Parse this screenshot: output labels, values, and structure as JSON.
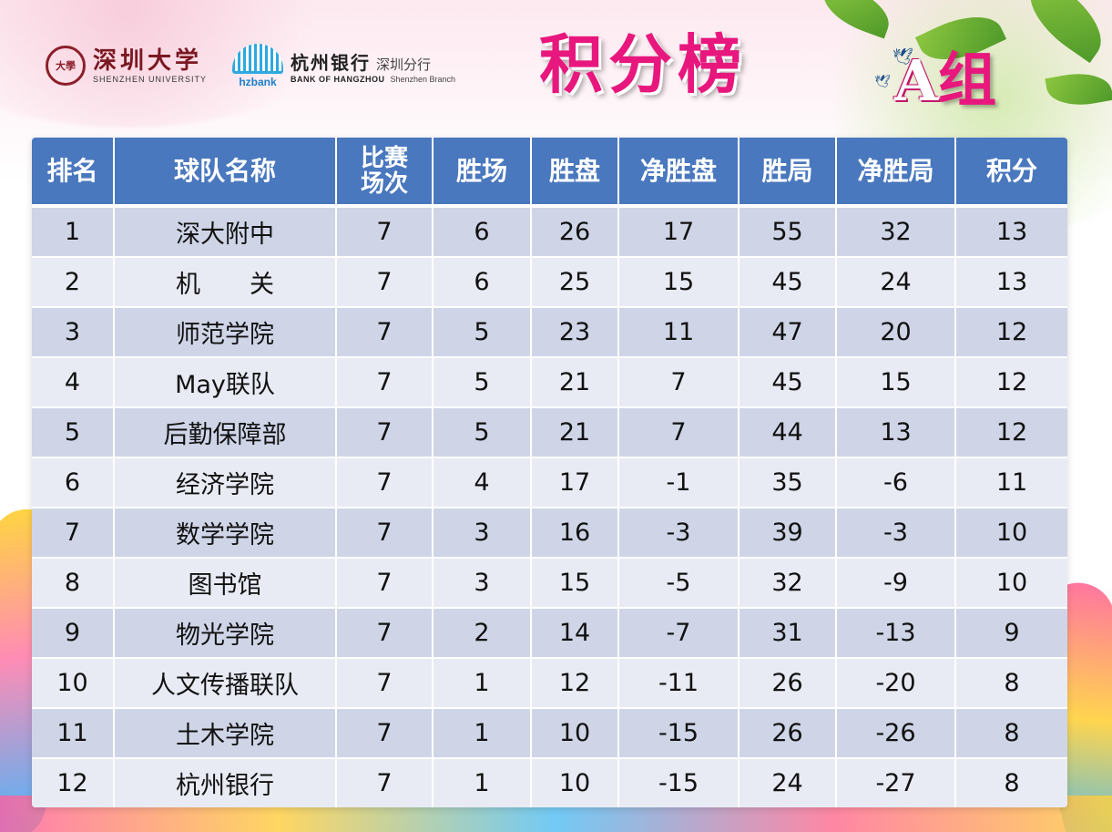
{
  "header": {
    "szu_seal": "大學",
    "szu_name_cn": "深圳大学",
    "szu_name_en": "SHENZHEN UNIVERSITY",
    "bank_short": "hzbank",
    "bank_name_cn": "杭州银行",
    "bank_branch_cn": "深圳分行",
    "bank_name_en": "BANK OF HANGZHOU",
    "bank_branch_en": "Shenzhen Branch",
    "title": "积分榜",
    "group_letter": "A",
    "group_suffix": "组"
  },
  "table": {
    "columns": [
      "排名",
      "球队名称",
      "比赛场次",
      "胜场",
      "胜盘",
      "净胜盘",
      "胜局",
      "净胜局",
      "积分"
    ],
    "rows": [
      [
        "1",
        "深大附中",
        "7",
        "6",
        "26",
        "17",
        "55",
        "32",
        "13"
      ],
      [
        "2",
        "机　　关",
        "7",
        "6",
        "25",
        "15",
        "45",
        "24",
        "13"
      ],
      [
        "3",
        "师范学院",
        "7",
        "5",
        "23",
        "11",
        "47",
        "20",
        "12"
      ],
      [
        "4",
        "May联队",
        "7",
        "5",
        "21",
        "7",
        "45",
        "15",
        "12"
      ],
      [
        "5",
        "后勤保障部",
        "7",
        "5",
        "21",
        "7",
        "44",
        "13",
        "12"
      ],
      [
        "6",
        "经济学院",
        "7",
        "4",
        "17",
        "-1",
        "35",
        "-6",
        "11"
      ],
      [
        "7",
        "数学学院",
        "7",
        "3",
        "16",
        "-3",
        "39",
        "-3",
        "10"
      ],
      [
        "8",
        "图书馆",
        "7",
        "3",
        "15",
        "-5",
        "32",
        "-9",
        "10"
      ],
      [
        "9",
        "物光学院",
        "7",
        "2",
        "14",
        "-7",
        "31",
        "-13",
        "9"
      ],
      [
        "10",
        "人文传播联队",
        "7",
        "1",
        "12",
        "-11",
        "26",
        "-20",
        "8"
      ],
      [
        "11",
        "土木学院",
        "7",
        "1",
        "10",
        "-15",
        "26",
        "-26",
        "8"
      ],
      [
        "12",
        "杭州银行",
        "7",
        "1",
        "10",
        "-15",
        "24",
        "-27",
        "8"
      ]
    ]
  },
  "colors": {
    "header_blue": "#4a78be",
    "row_dark": "#cfd5e7",
    "row_light": "#e8ebf4",
    "title_pink": "#e8177d",
    "szu_red": "#7a1822"
  },
  "icons": [
    "university-seal-icon",
    "hzbank-logo-icon",
    "bird-icon",
    "leaf-icon"
  ]
}
